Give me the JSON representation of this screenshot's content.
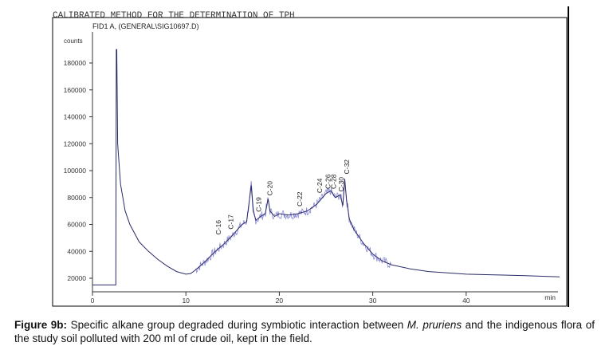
{
  "chart_data": {
    "type": "line",
    "header": "CALIBRATED METHOD FOR THE DETERMINATION OF TPH",
    "trace_label": "FID1 A, (GENERAL\\SIG10697.D)",
    "ylabel": "counts",
    "xlabel": "min",
    "yticks": [
      20000,
      40000,
      60000,
      80000,
      100000,
      120000,
      140000,
      160000,
      180000
    ],
    "xticks": [
      0,
      10,
      20,
      30,
      40
    ],
    "xlim": [
      0,
      50
    ],
    "ylim": [
      10000,
      190000
    ],
    "series": [
      {
        "x": [
          0,
          2.5,
          2.55,
          2.6,
          2.7,
          3,
          3.5,
          4,
          5,
          6,
          7,
          8,
          9,
          10,
          10.5,
          11,
          12,
          13,
          14,
          15,
          16,
          16.5,
          17,
          17.2,
          17.5,
          18,
          18.5,
          18.8,
          19,
          19.5,
          20,
          21,
          22,
          23,
          24,
          25,
          25.5,
          26,
          26.5,
          26.8,
          27,
          27.2,
          27.5,
          28,
          29,
          30,
          31,
          32,
          34,
          36,
          38,
          40,
          43,
          46,
          50
        ],
        "y": [
          15000,
          15000,
          190000,
          190000,
          120000,
          90000,
          70000,
          60000,
          47000,
          40000,
          34000,
          29000,
          25000,
          23000,
          23500,
          26000,
          32000,
          39000,
          45000,
          52000,
          60000,
          62000,
          89000,
          70000,
          63000,
          66000,
          68000,
          79000,
          70000,
          66000,
          68000,
          67000,
          68000,
          70000,
          75000,
          83000,
          85000,
          80000,
          82000,
          74000,
          94000,
          78000,
          64000,
          56000,
          46000,
          38000,
          33000,
          30000,
          27000,
          25000,
          24000,
          23000,
          22500,
          22000,
          21000
        ]
      }
    ],
    "peak_labels": [
      {
        "label": "C-16",
        "x": 13.5,
        "y": 50000
      },
      {
        "label": "C-17",
        "x": 14.8,
        "y": 54000
      },
      {
        "label": "C-19",
        "x": 17.8,
        "y": 67000
      },
      {
        "label": "C-20",
        "x": 19.0,
        "y": 79000
      },
      {
        "label": "C-22",
        "x": 22.2,
        "y": 71000
      },
      {
        "label": "C-24",
        "x": 24.3,
        "y": 81000
      },
      {
        "label": "C-26",
        "x": 25.2,
        "y": 84000
      },
      {
        "label": "C-28",
        "x": 25.8,
        "y": 84000
      },
      {
        "label": "C-30",
        "x": 26.6,
        "y": 82000
      },
      {
        "label": "C-32",
        "x": 27.2,
        "y": 95000
      }
    ],
    "grid": false,
    "legend": "none"
  },
  "caption": {
    "figure_label": "Figure 9b:",
    "text_1": " Specific alkane group degraded during symbiotic interaction between ",
    "species": "M. pruriens",
    "text_2": " and the indigenous flora of the study soil polluted with 200 ml of crude oil, kept in the field."
  },
  "colors": {
    "trace": "#2a2a6a",
    "noise": "#8c8cd6",
    "axis": "#333333",
    "frame": "#000000"
  }
}
